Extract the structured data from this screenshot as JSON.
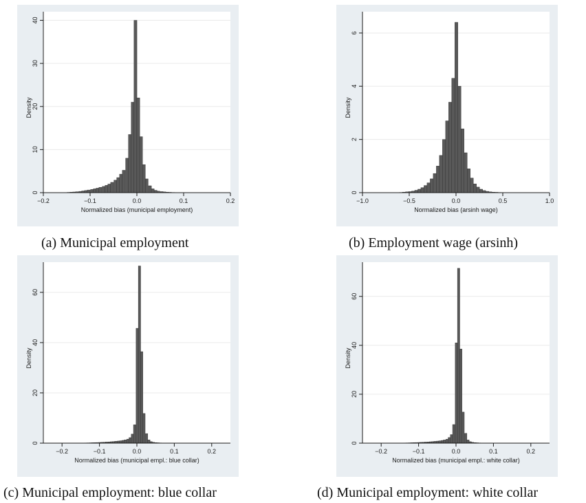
{
  "colors": {
    "panel_background": "#e9eef2",
    "plot_background": "#ffffff",
    "bar_fill": "#595959",
    "bar_stroke": "#2b2b2b",
    "grid": "#eaeaea",
    "axis": "#1a1a1a"
  },
  "chart_data": [
    {
      "type": "bar",
      "subtype": "histogram",
      "caption": "(a) Municipal employment",
      "xlabel": "Normalized bias (municipal employment)",
      "ylabel": "Density",
      "xlim": [
        -0.2,
        0.2
      ],
      "ylim": [
        0,
        42
      ],
      "x_ticks": [
        -0.2,
        -0.1,
        0.0,
        0.1,
        0.2
      ],
      "x_tick_labels": [
        "−0.2",
        "−0.1",
        "0.0",
        "0.1",
        "0.2"
      ],
      "y_ticks": [
        0,
        10,
        20,
        30,
        40
      ],
      "y_tick_labels": [
        "0",
        "10",
        "20",
        "30",
        "40"
      ],
      "grid": true,
      "bin_width": 0.00625,
      "bin_centers": [
        -0.153,
        -0.146,
        -0.14,
        -0.134,
        -0.128,
        -0.121,
        -0.115,
        -0.109,
        -0.103,
        -0.096,
        -0.09,
        -0.084,
        -0.078,
        -0.071,
        -0.065,
        -0.059,
        -0.053,
        -0.046,
        -0.04,
        -0.034,
        -0.028,
        -0.021,
        -0.015,
        -0.009,
        -0.003,
        0.003,
        0.009,
        0.015,
        0.021,
        0.028,
        0.034,
        0.04,
        0.046,
        0.053,
        0.059,
        0.065,
        0.071,
        0.078,
        0.084,
        0.09,
        0.096,
        0.103,
        0.109,
        0.115
      ],
      "values": [
        0.05,
        0.08,
        0.12,
        0.16,
        0.22,
        0.3,
        0.4,
        0.5,
        0.62,
        0.75,
        0.9,
        1.05,
        1.25,
        1.45,
        1.7,
        2.0,
        2.4,
        2.9,
        3.5,
        4.3,
        5.2,
        8.0,
        13.5,
        21.0,
        40.0,
        22.0,
        13.0,
        6.5,
        3.2,
        1.6,
        0.9,
        0.55,
        0.35,
        0.25,
        0.18,
        0.12,
        0.09,
        0.06,
        0.05,
        0.04,
        0.03,
        0.02,
        0.02,
        0.01
      ]
    },
    {
      "type": "bar",
      "subtype": "histogram",
      "caption": "(b) Employment wage (arsinh)",
      "xlabel": "Normalized bias (arsinh wage)",
      "ylabel": "Density",
      "xlim": [
        -1.0,
        1.0
      ],
      "ylim": [
        0,
        6.8
      ],
      "x_ticks": [
        -1.0,
        -0.5,
        0.0,
        0.5,
        1.0
      ],
      "x_tick_labels": [
        "−1.0",
        "−0.5",
        "0.0",
        "0.5",
        "1.0"
      ],
      "y_ticks": [
        0,
        2,
        4,
        6
      ],
      "y_tick_labels": [
        "0",
        "2",
        "4",
        "6"
      ],
      "grid": true,
      "bin_width": 0.033,
      "bin_centers": [
        -0.59,
        -0.557,
        -0.524,
        -0.491,
        -0.458,
        -0.425,
        -0.392,
        -0.359,
        -0.326,
        -0.293,
        -0.26,
        -0.227,
        -0.194,
        -0.161,
        -0.128,
        -0.095,
        -0.062,
        -0.029,
        0.004,
        0.037,
        0.07,
        0.103,
        0.136,
        0.169,
        0.202,
        0.235,
        0.268,
        0.301,
        0.334,
        0.367,
        0.4,
        0.433,
        0.466,
        0.499,
        0.532
      ],
      "values": [
        0.01,
        0.02,
        0.03,
        0.04,
        0.06,
        0.09,
        0.13,
        0.19,
        0.27,
        0.37,
        0.52,
        0.72,
        1.0,
        1.4,
        2.0,
        2.7,
        3.4,
        4.3,
        6.4,
        4.0,
        2.4,
        1.5,
        0.9,
        0.55,
        0.33,
        0.21,
        0.13,
        0.08,
        0.05,
        0.03,
        0.02,
        0.015,
        0.01,
        0.008,
        0.005
      ]
    },
    {
      "type": "bar",
      "subtype": "histogram",
      "caption": "(c) Municipal employment: blue collar",
      "xlabel": "Normalized bias (municipal empl.: blue collar)",
      "ylabel": "Density",
      "xlim": [
        -0.25,
        0.25
      ],
      "ylim": [
        0,
        72
      ],
      "x_ticks": [
        -0.2,
        -0.1,
        0.0,
        0.1,
        0.2
      ],
      "x_tick_labels": [
        "−0.2",
        "−0.1",
        "0.0",
        "0.1",
        "0.2"
      ],
      "y_ticks": [
        0,
        20,
        40,
        60
      ],
      "y_tick_labels": [
        "0",
        "20",
        "40",
        "60"
      ],
      "grid": true,
      "bin_width": 0.00625,
      "bin_centers": [
        -0.168,
        -0.162,
        -0.155,
        -0.149,
        -0.143,
        -0.137,
        -0.131,
        -0.124,
        -0.118,
        -0.112,
        -0.106,
        -0.099,
        -0.093,
        -0.087,
        -0.081,
        -0.074,
        -0.068,
        -0.062,
        -0.056,
        -0.049,
        -0.043,
        -0.037,
        -0.031,
        -0.024,
        -0.018,
        -0.012,
        -0.006,
        0.001,
        0.007,
        0.013,
        0.019,
        0.026,
        0.032,
        0.038,
        0.044,
        0.051,
        0.057,
        0.063,
        0.069,
        0.076,
        0.082,
        0.088,
        0.094,
        0.101
      ],
      "values": [
        0.02,
        0.03,
        0.04,
        0.05,
        0.07,
        0.09,
        0.11,
        0.14,
        0.17,
        0.2,
        0.24,
        0.28,
        0.33,
        0.38,
        0.44,
        0.5,
        0.57,
        0.65,
        0.74,
        0.84,
        0.95,
        1.1,
        1.3,
        1.6,
        2.2,
        3.6,
        7.3,
        45.7,
        70.5,
        36.4,
        11.8,
        3.8,
        1.3,
        0.6,
        0.35,
        0.22,
        0.15,
        0.1,
        0.07,
        0.05,
        0.04,
        0.03,
        0.02,
        0.01
      ]
    },
    {
      "type": "bar",
      "subtype": "histogram",
      "caption": "(d) Municipal employment: white collar",
      "xlabel": "Normalized bias (municipal empl.: white collar)",
      "ylabel": "Density",
      "xlim": [
        -0.25,
        0.25
      ],
      "ylim": [
        0,
        74
      ],
      "x_ticks": [
        -0.2,
        -0.1,
        0.0,
        0.1,
        0.2
      ],
      "x_tick_labels": [
        "−0.2",
        "−0.1",
        "0.0",
        "0.1",
        "0.2"
      ],
      "y_ticks": [
        0,
        20,
        40,
        60
      ],
      "y_tick_labels": [
        "0",
        "20",
        "40",
        "60"
      ],
      "grid": true,
      "bin_width": 0.00625,
      "bin_centers": [
        -0.168,
        -0.162,
        -0.155,
        -0.149,
        -0.143,
        -0.137,
        -0.131,
        -0.124,
        -0.118,
        -0.112,
        -0.106,
        -0.099,
        -0.093,
        -0.087,
        -0.081,
        -0.074,
        -0.068,
        -0.062,
        -0.056,
        -0.049,
        -0.043,
        -0.037,
        -0.031,
        -0.024,
        -0.018,
        -0.012,
        -0.006,
        0.001,
        0.007,
        0.013,
        0.019,
        0.026,
        0.032,
        0.038,
        0.044,
        0.051,
        0.057,
        0.063,
        0.069,
        0.076,
        0.082,
        0.088,
        0.094,
        0.101
      ],
      "values": [
        0.02,
        0.03,
        0.04,
        0.05,
        0.07,
        0.09,
        0.11,
        0.14,
        0.17,
        0.2,
        0.24,
        0.28,
        0.33,
        0.38,
        0.44,
        0.5,
        0.57,
        0.65,
        0.74,
        0.84,
        0.95,
        1.1,
        1.3,
        1.6,
        2.3,
        3.5,
        7.6,
        41.0,
        71.5,
        38.5,
        12.7,
        4.0,
        1.3,
        0.6,
        0.35,
        0.22,
        0.15,
        0.1,
        0.07,
        0.05,
        0.04,
        0.03,
        0.02,
        0.01
      ]
    }
  ]
}
